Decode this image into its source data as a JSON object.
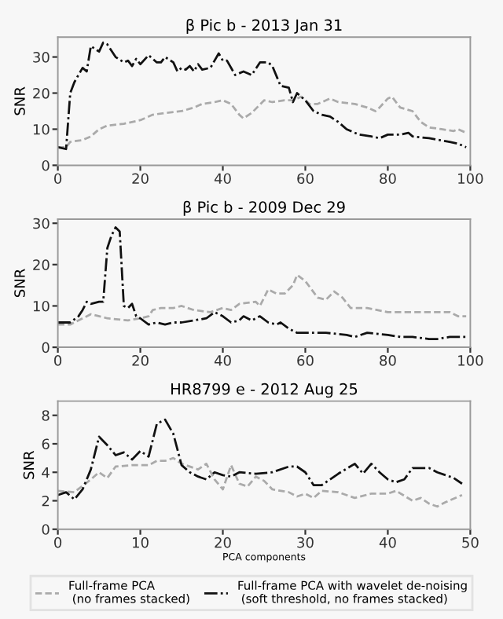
{
  "chart_data": [
    {
      "type": "line",
      "title": "β Pic b - 2013 Jan 31",
      "ylabel": "SNR",
      "xlim": [
        0,
        100
      ],
      "ylim": [
        0,
        35.5
      ],
      "xticks": [
        0,
        20,
        40,
        60,
        80,
        100
      ],
      "yticks": [
        0,
        10,
        20,
        30
      ],
      "grid": false,
      "marker": "none",
      "series": [
        {
          "color": "#aaaaaa",
          "line_style": "dashed",
          "x": [
            0,
            2,
            3,
            6,
            8,
            10,
            12,
            16,
            20,
            23,
            26,
            30,
            33,
            35,
            38,
            40,
            42,
            44,
            45,
            47,
            50,
            52,
            55,
            57,
            59,
            61,
            63,
            66,
            68,
            72,
            75,
            77,
            78,
            80,
            81,
            83,
            86,
            88,
            90,
            93,
            96,
            97,
            99
          ],
          "values": [
            5,
            5,
            6.5,
            7,
            8,
            10,
            11,
            11.5,
            12.5,
            14,
            14.5,
            15,
            16,
            17,
            17.5,
            18,
            17,
            14,
            13,
            14.5,
            18,
            17.5,
            18,
            18,
            19,
            17,
            17,
            18.5,
            17.5,
            17,
            16,
            15,
            16,
            18.5,
            19,
            16,
            15,
            12,
            10.5,
            10,
            9.5,
            10,
            9
          ]
        },
        {
          "color": "#111111",
          "line_style": "dashdot",
          "x": [
            0,
            2,
            3,
            4,
            6,
            7,
            8,
            10,
            11,
            12,
            14,
            16,
            17,
            18,
            19,
            20,
            22,
            24,
            25,
            26,
            28,
            29,
            30,
            31,
            32,
            33,
            34,
            35,
            37,
            39,
            40,
            41,
            43,
            45,
            46,
            47,
            49,
            51,
            52,
            54,
            56,
            57,
            58,
            60,
            62,
            64,
            66,
            68,
            70,
            73,
            76,
            78,
            80,
            83,
            85,
            86,
            90,
            95,
            97,
            99
          ],
          "values": [
            5,
            4.5,
            20,
            23,
            27,
            26,
            33,
            31.5,
            34,
            33.5,
            30,
            28.5,
            29,
            27.5,
            29.5,
            28,
            30.5,
            28.5,
            28.5,
            30,
            28.5,
            26,
            27,
            26.5,
            27.5,
            26,
            28,
            26.5,
            27,
            31,
            29,
            29,
            25,
            26,
            25.5,
            25,
            28.5,
            28.5,
            27.5,
            22,
            21.5,
            17.5,
            20,
            18,
            15,
            14,
            13.5,
            12,
            10,
            8.5,
            8,
            7.5,
            8.5,
            8.5,
            9,
            8,
            7.5,
            6.5,
            6,
            5
          ]
        }
      ]
    },
    {
      "type": "line",
      "title": "β Pic b - 2009 Dec 29",
      "ylabel": "SNR",
      "xlim": [
        0,
        100
      ],
      "ylim": [
        0,
        31
      ],
      "xticks": [
        0,
        20,
        40,
        60,
        80,
        100
      ],
      "yticks": [
        0,
        10,
        20,
        30
      ],
      "grid": false,
      "marker": "none",
      "series": [
        {
          "color": "#aaaaaa",
          "line_style": "dashed",
          "x": [
            0,
            3,
            6,
            8,
            12,
            17,
            20,
            22,
            23,
            25,
            28,
            30,
            33,
            37,
            40,
            42,
            44,
            48,
            49,
            51,
            53,
            55,
            57,
            58,
            60,
            63,
            65,
            67,
            69,
            71,
            75,
            80,
            85,
            90,
            95,
            97,
            99
          ],
          "values": [
            5.5,
            5.5,
            7,
            8,
            7,
            6.5,
            7,
            7.5,
            9,
            9.5,
            9.5,
            10,
            9,
            8.5,
            9.5,
            9,
            10.5,
            11,
            10,
            14,
            13,
            13,
            15,
            17.5,
            16,
            12,
            11.5,
            13.5,
            12,
            9.5,
            9.5,
            8.5,
            8.5,
            8.5,
            8.5,
            7.5,
            7.5
          ]
        },
        {
          "color": "#111111",
          "line_style": "dashdot",
          "x": [
            0,
            3,
            5,
            6,
            7,
            8,
            10,
            11,
            12,
            13,
            14,
            15,
            16,
            17,
            18,
            19,
            20,
            22,
            24,
            26,
            28,
            30,
            33,
            36,
            38,
            40,
            42,
            44,
            45,
            47,
            49,
            51,
            53,
            54,
            56,
            58,
            60,
            65,
            70,
            72,
            75,
            80,
            83,
            86,
            90,
            92,
            95,
            99
          ],
          "values": [
            6,
            6,
            7.5,
            9,
            11,
            10.5,
            11,
            11,
            24,
            27,
            29,
            28,
            10,
            9.5,
            10.5,
            7.5,
            7,
            5.5,
            6,
            5.5,
            6,
            6,
            6.5,
            7,
            8.5,
            7.5,
            6,
            6.5,
            7.5,
            6.5,
            7.5,
            6,
            5.5,
            6,
            4.5,
            3.5,
            3.5,
            3.5,
            3,
            2.5,
            3.5,
            3,
            2.5,
            2.5,
            2,
            2,
            2.5,
            2.5
          ]
        }
      ]
    },
    {
      "type": "line",
      "title": "HR8799 e - 2012 Aug 25",
      "xlabel": "PCA components",
      "ylabel": "SNR",
      "xlim": [
        0,
        50
      ],
      "ylim": [
        0,
        9
      ],
      "xticks": [
        0,
        10,
        20,
        30,
        40,
        50
      ],
      "yticks": [
        0,
        2,
        4,
        6,
        8
      ],
      "grid": false,
      "marker": "none",
      "legend": "bottom",
      "series": [
        {
          "name": "Full-frame PCA\n (no frames stacked)",
          "color": "#aaaaaa",
          "line_style": "dashed",
          "x": [
            0,
            2,
            4,
            5,
            6,
            7,
            9,
            11,
            12,
            13,
            14,
            15,
            17,
            18,
            19,
            20,
            21,
            22,
            23,
            24,
            25,
            26,
            28,
            29,
            30,
            31,
            32,
            34,
            36,
            38,
            40,
            41,
            43,
            44,
            45,
            46,
            47,
            49
          ],
          "values": [
            2.7,
            2.6,
            3.5,
            4,
            3.6,
            4.4,
            4.5,
            4.5,
            4.8,
            4.8,
            5,
            4.6,
            4.2,
            4.6,
            3.5,
            2.8,
            4.5,
            3.2,
            3,
            3.7,
            3.4,
            2.8,
            2.6,
            2.3,
            2.5,
            2.2,
            2.7,
            2.6,
            2.2,
            2.5,
            2.5,
            2.7,
            2,
            2.2,
            1.8,
            1.6,
            1.9,
            2.4
          ]
        },
        {
          "name": "Full-frame PCA with wavelet de-noising\n (soft threshold, no frames stacked)",
          "color": "#111111",
          "line_style": "dashdot",
          "x": [
            0,
            1,
            2,
            3,
            4,
            5,
            6,
            7,
            8,
            9,
            10,
            11,
            12,
            13,
            14,
            15,
            16,
            17,
            18,
            19,
            20,
            21,
            22,
            24,
            26,
            28,
            29,
            30,
            31,
            32,
            34,
            36,
            37,
            38,
            39,
            40,
            41,
            42,
            43,
            45,
            46,
            47,
            48,
            49
          ],
          "values": [
            2.4,
            2.6,
            2.1,
            2.8,
            4.2,
            6.5,
            5.9,
            5.2,
            5.4,
            4.9,
            5.5,
            5.1,
            7.4,
            7.7,
            6.7,
            4.5,
            4,
            3.7,
            3.5,
            4,
            3.8,
            3.7,
            4,
            3.9,
            4,
            4.4,
            4.4,
            4,
            3.1,
            3.1,
            3.9,
            4.6,
            3.9,
            4.6,
            4,
            3.5,
            3.3,
            3.5,
            4.3,
            4.3,
            4,
            3.8,
            3.6,
            3.2
          ]
        }
      ]
    }
  ]
}
